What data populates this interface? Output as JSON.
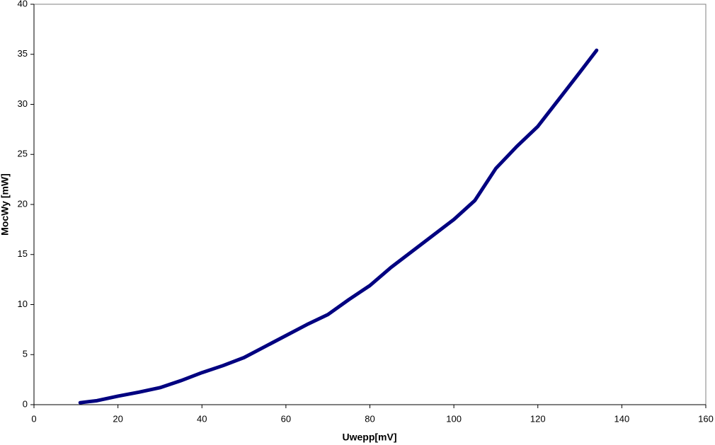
{
  "chart_data": {
    "type": "line",
    "x_label": "Uwepp[mV]",
    "y_label": "MocWy [mW]",
    "x": [
      11,
      15,
      20,
      25,
      30,
      35,
      40,
      45,
      50,
      55,
      60,
      65,
      70,
      75,
      80,
      85,
      90,
      95,
      100,
      105,
      110,
      115,
      120,
      125,
      130,
      134
    ],
    "series": [
      {
        "color": "#000080",
        "values": [
          0.2,
          0.4,
          0.85,
          1.25,
          1.7,
          2.4,
          3.2,
          3.9,
          4.7,
          5.8,
          6.9,
          8.0,
          9.0,
          10.5,
          11.9,
          13.7,
          15.3,
          16.9,
          18.5,
          20.4,
          23.6,
          25.8,
          27.8,
          30.5,
          33.2,
          35.4
        ]
      }
    ],
    "xlim": [
      0,
      160
    ],
    "xticks": [
      0,
      20,
      40,
      60,
      80,
      100,
      120,
      140,
      160
    ],
    "ylim": [
      0,
      40
    ],
    "yticks": [
      0,
      5,
      10,
      15,
      20,
      25,
      30,
      35,
      40
    ]
  }
}
